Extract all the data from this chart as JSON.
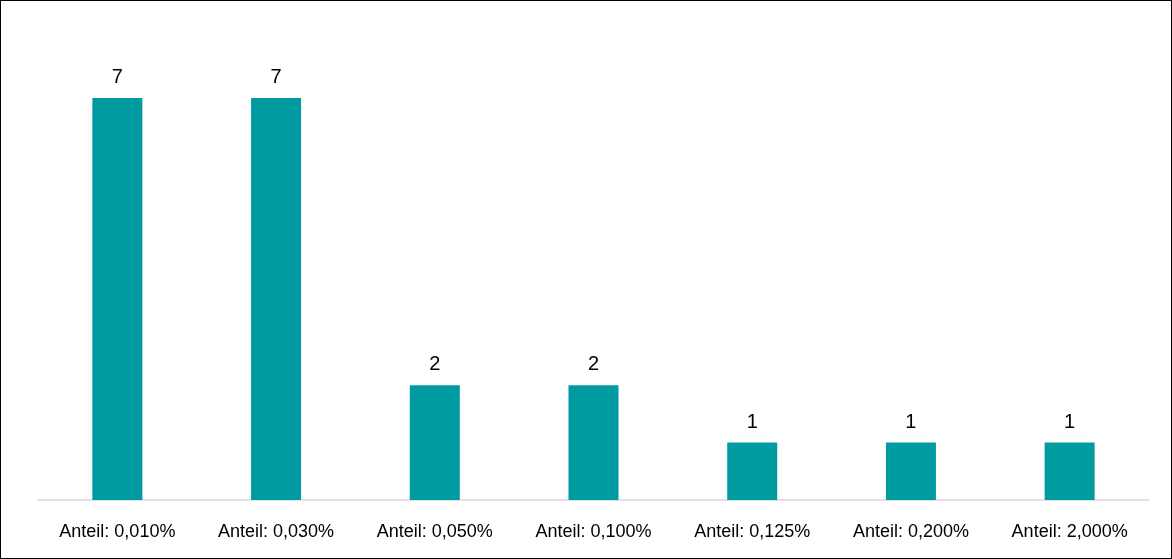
{
  "chart_data": {
    "type": "bar",
    "categories": [
      "Anteil: 0,010%",
      "Anteil: 0,030%",
      "Anteil: 0,050%",
      "Anteil: 0,100%",
      "Anteil: 0,125%",
      "Anteil: 0,200%",
      "Anteil: 2,000%"
    ],
    "values": [
      7,
      7,
      2,
      2,
      1,
      1,
      1
    ],
    "color": "#009ba1",
    "data_labels": true
  }
}
